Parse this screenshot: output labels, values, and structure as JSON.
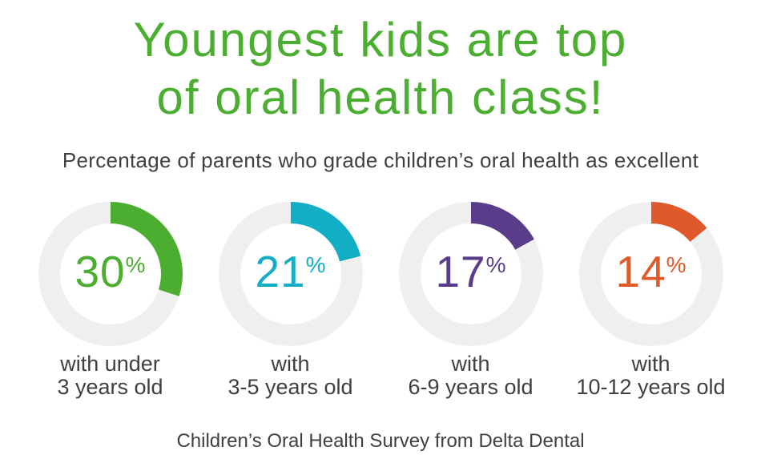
{
  "title": {
    "line1": "Youngest kids are top",
    "line2": "of oral health class!",
    "color": "#4bae31"
  },
  "subtitle": "Percentage of parents who grade children’s oral health as excellent",
  "footer": "Children’s Oral Health Survey from Delta Dental",
  "text_color": "#404042",
  "chart_data": {
    "type": "pie",
    "variant": "donut-gauges",
    "title": "Percentage of parents who grade children’s oral health as excellent",
    "units": "%",
    "categories": [
      "with under 3 years old",
      "with 3-5 years old",
      "with 6-9 years old",
      "with 10-12 years old"
    ],
    "values": [
      30,
      21,
      17,
      14
    ],
    "colors": [
      "#4bae31",
      "#11aec6",
      "#5a3d8a",
      "#e0592a"
    ],
    "track_color": "#efefef",
    "start_angle_deg": 0,
    "direction": "clockwise",
    "labels_two_line": [
      [
        "with under",
        "3 years old"
      ],
      [
        "with",
        "3-5 years old"
      ],
      [
        "with",
        "6-9 years old"
      ],
      [
        "with",
        "10-12 years old"
      ]
    ],
    "legend_position": "below-each-donut"
  }
}
